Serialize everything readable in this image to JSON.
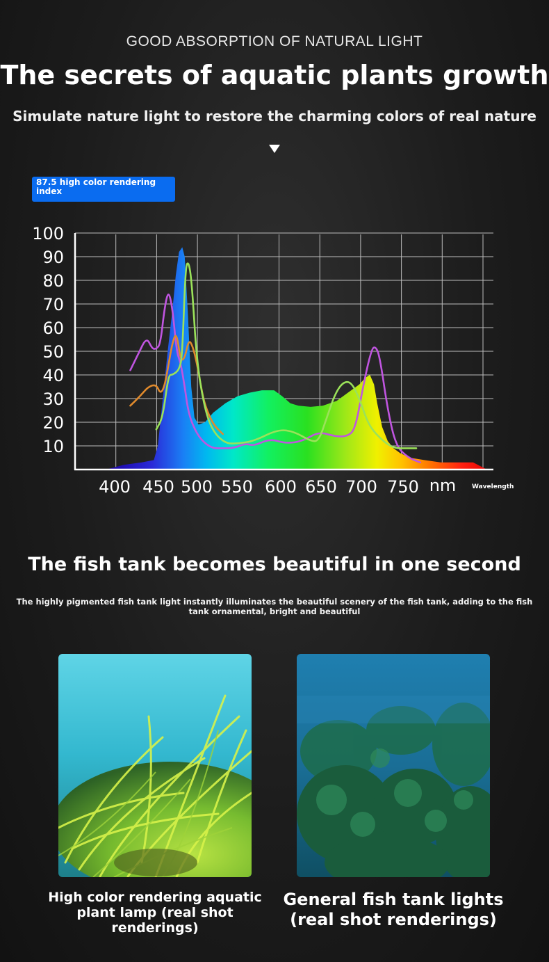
{
  "header": {
    "eyebrow": "GOOD ABSORPTION OF NATURAL LIGHT",
    "title": "The secrets of aquatic plants growth",
    "subtitle": "Simulate nature light to restore the charming colors of real nature"
  },
  "badge": {
    "text": "87.5 high color rendering index"
  },
  "chart_data": {
    "type": "line",
    "title": "",
    "xlabel": "Wavelength",
    "x_unit": "nm",
    "ylabel": "",
    "xlim": [
      350,
      865
    ],
    "ylim": [
      0,
      100
    ],
    "x_ticks": [
      400,
      450,
      500,
      550,
      600,
      650,
      700,
      750
    ],
    "y_ticks": [
      10,
      20,
      30,
      40,
      50,
      60,
      70,
      80,
      90,
      100
    ],
    "grid": true,
    "legend": "none",
    "spectrum": {
      "name": "",
      "type": "area",
      "x": [
        388,
        410,
        432,
        447,
        452,
        458,
        464,
        470,
        474,
        478,
        482,
        485,
        489,
        493,
        497,
        502,
        510,
        520,
        535,
        550,
        565,
        580,
        595,
        605,
        615,
        625,
        640,
        655,
        672,
        688,
        700,
        708,
        713,
        718,
        722,
        728,
        735,
        742,
        750,
        762,
        780,
        800,
        820,
        840,
        857
      ],
      "y": [
        0,
        2,
        3,
        4,
        10,
        30,
        50,
        68,
        82,
        92,
        94,
        90,
        65,
        35,
        22,
        19,
        20,
        24,
        28,
        31,
        32.5,
        33.5,
        33.5,
        31,
        28,
        27,
        26.5,
        27,
        29,
        33,
        36,
        39,
        40,
        36,
        28,
        18,
        12,
        9,
        7,
        5,
        4,
        3,
        3,
        3,
        0
      ]
    },
    "series": [
      {
        "name": "",
        "color": "#c055e0",
        "x": [
          418,
          428,
          438,
          445,
          450,
          455,
          460,
          465,
          470,
          475,
          480,
          485,
          490,
          500,
          510,
          520,
          530,
          545,
          560,
          570,
          590,
          610,
          630,
          650,
          670,
          685,
          695,
          705,
          715,
          720,
          725,
          735,
          745,
          760,
          775
        ],
        "y": [
          42,
          49,
          56,
          51,
          51,
          53,
          68,
          76,
          68,
          50,
          45,
          35,
          23,
          15,
          11,
          9,
          9,
          9,
          11,
          10,
          13,
          11,
          12,
          16,
          14,
          14,
          17,
          36,
          51,
          52,
          48,
          25,
          10,
          5,
          3
        ]
      },
      {
        "name": "",
        "color": "#e08a2c",
        "x": [
          418,
          430,
          440,
          450,
          455,
          460,
          465,
          470,
          475,
          480,
          485,
          490,
          495,
          500,
          505,
          510,
          520,
          532
        ],
        "y": [
          27,
          31,
          35,
          36,
          32,
          35,
          44,
          54,
          58,
          46,
          47,
          55,
          52,
          45,
          35,
          27,
          19,
          15
        ]
      },
      {
        "name": "",
        "color": "#9be25a",
        "x": [
          450,
          458,
          465,
          470,
          478,
          482,
          486,
          490,
          494,
          500,
          510,
          520,
          535,
          550,
          570,
          600,
          620,
          640,
          650,
          660,
          670,
          680,
          690,
          700,
          710,
          720,
          740,
          760,
          770
        ],
        "y": [
          17,
          22,
          40,
          40,
          42,
          48,
          86,
          88,
          78,
          45,
          25,
          16,
          11,
          11,
          12,
          17,
          16,
          12,
          12,
          22,
          32,
          37,
          37,
          30,
          20,
          15,
          9,
          9,
          9
        ]
      }
    ]
  },
  "section2": {
    "title": "The fish tank becomes beautiful in one second",
    "description": "The highly pigmented fish tank light instantly illuminates the beautiful scenery of the fish tank, adding to the fish tank ornamental, bright and beautiful"
  },
  "comparison": [
    {
      "caption": "High color rendering aquatic plant lamp (real shot renderings)"
    },
    {
      "caption": "General fish tank lights (real shot renderings)"
    }
  ]
}
